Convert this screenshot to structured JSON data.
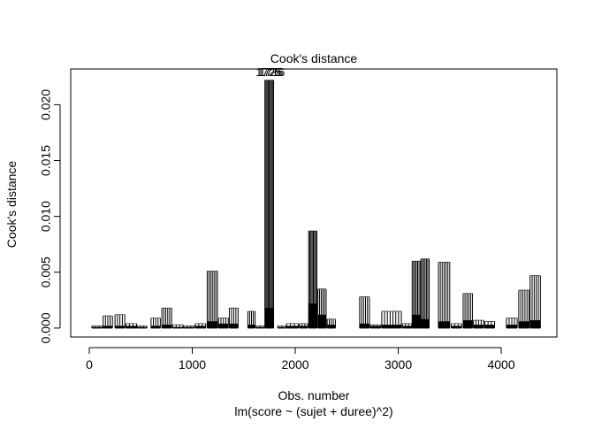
{
  "chart_data": {
    "type": "bar",
    "title": "Cook's distance",
    "xlabel": "Obs. number",
    "subtitle": "lm(score ~ (sujet + duree)^2)",
    "ylabel": "Cook's distance",
    "xlim": [
      -180,
      4540
    ],
    "ylim": [
      -0.0008,
      0.0232
    ],
    "x_ticks": [
      0,
      1000,
      2000,
      3000,
      4000
    ],
    "x_tick_labels": [
      "0",
      "1000",
      "2000",
      "3000",
      "4000"
    ],
    "y_ticks": [
      0.0,
      0.005,
      0.01,
      0.015,
      0.02
    ],
    "y_tick_labels": [
      "0.000",
      "0.005",
      "0.010",
      "0.015",
      "0.020"
    ],
    "point_labels": [
      "1725",
      "1726",
      "1716"
    ],
    "label_position": [
      1740,
      0.0229
    ],
    "groups": [
      {
        "x_start": 25,
        "x_end": 130,
        "max": 0.0002,
        "base": 0.0001,
        "n": 4
      },
      {
        "x_start": 135,
        "x_end": 225,
        "max": 0.0011,
        "base": 0.0002,
        "n": 5
      },
      {
        "x_start": 250,
        "x_end": 345,
        "max": 0.0012,
        "base": 0.0002,
        "n": 5
      },
      {
        "x_start": 355,
        "x_end": 460,
        "max": 0.0004,
        "base": 0.0002,
        "n": 4
      },
      {
        "x_start": 465,
        "x_end": 560,
        "max": 0.0002,
        "base": 0.0001,
        "n": 4
      },
      {
        "x_start": 600,
        "x_end": 690,
        "max": 0.0009,
        "base": 0.0002,
        "n": 5
      },
      {
        "x_start": 705,
        "x_end": 800,
        "max": 0.0018,
        "base": 0.0003,
        "n": 6
      },
      {
        "x_start": 810,
        "x_end": 910,
        "max": 0.0003,
        "base": 0.0001,
        "n": 4
      },
      {
        "x_start": 915,
        "x_end": 1020,
        "max": 0.0002,
        "base": 0.0001,
        "n": 4
      },
      {
        "x_start": 1030,
        "x_end": 1130,
        "max": 0.0004,
        "base": 0.0002,
        "n": 4
      },
      {
        "x_start": 1145,
        "x_end": 1245,
        "max": 0.0051,
        "base": 0.0006,
        "n": 7
      },
      {
        "x_start": 1255,
        "x_end": 1350,
        "max": 0.0009,
        "base": 0.0004,
        "n": 5
      },
      {
        "x_start": 1360,
        "x_end": 1445,
        "max": 0.0018,
        "base": 0.0004,
        "n": 5
      },
      {
        "x_start": 1540,
        "x_end": 1610,
        "max": 0.0015,
        "base": 0.0003,
        "n": 5
      },
      {
        "x_start": 1620,
        "x_end": 1700,
        "max": 0.0002,
        "base": 0.0001,
        "n": 3
      },
      {
        "x_start": 1705,
        "x_end": 1790,
        "max": 0.0222,
        "base": 0.0018,
        "n": 9
      },
      {
        "x_start": 1830,
        "x_end": 1910,
        "max": 0.0002,
        "base": 0.0001,
        "n": 3
      },
      {
        "x_start": 1915,
        "x_end": 2030,
        "max": 0.0004,
        "base": 0.0002,
        "n": 4
      },
      {
        "x_start": 2040,
        "x_end": 2120,
        "max": 0.0004,
        "base": 0.0002,
        "n": 4
      },
      {
        "x_start": 2130,
        "x_end": 2210,
        "max": 0.0087,
        "base": 0.0022,
        "n": 8
      },
      {
        "x_start": 2220,
        "x_end": 2300,
        "max": 0.0035,
        "base": 0.0012,
        "n": 6
      },
      {
        "x_start": 2310,
        "x_end": 2390,
        "max": 0.0008,
        "base": 0.0003,
        "n": 5
      },
      {
        "x_start": 2625,
        "x_end": 2720,
        "max": 0.0028,
        "base": 0.0004,
        "n": 6
      },
      {
        "x_start": 2730,
        "x_end": 2830,
        "max": 0.0003,
        "base": 0.0002,
        "n": 4
      },
      {
        "x_start": 2840,
        "x_end": 3030,
        "max": 0.0015,
        "base": 0.0003,
        "n": 8
      },
      {
        "x_start": 3040,
        "x_end": 3130,
        "max": 0.0004,
        "base": 0.0002,
        "n": 4
      },
      {
        "x_start": 3135,
        "x_end": 3215,
        "max": 0.006,
        "base": 0.0012,
        "n": 7
      },
      {
        "x_start": 3220,
        "x_end": 3300,
        "max": 0.0062,
        "base": 0.0008,
        "n": 7
      },
      {
        "x_start": 3390,
        "x_end": 3500,
        "max": 0.0059,
        "base": 0.0006,
        "n": 7
      },
      {
        "x_start": 3515,
        "x_end": 3615,
        "max": 0.0004,
        "base": 0.0002,
        "n": 4
      },
      {
        "x_start": 3630,
        "x_end": 3720,
        "max": 0.0031,
        "base": 0.0007,
        "n": 6
      },
      {
        "x_start": 3730,
        "x_end": 3830,
        "max": 0.0007,
        "base": 0.0003,
        "n": 5
      },
      {
        "x_start": 3840,
        "x_end": 3935,
        "max": 0.0006,
        "base": 0.0003,
        "n": 4
      },
      {
        "x_start": 4050,
        "x_end": 4155,
        "max": 0.0009,
        "base": 0.0003,
        "n": 5
      },
      {
        "x_start": 4170,
        "x_end": 4270,
        "max": 0.0034,
        "base": 0.0006,
        "n": 6
      },
      {
        "x_start": 4280,
        "x_end": 4380,
        "max": 0.0047,
        "base": 0.0007,
        "n": 6
      }
    ]
  }
}
